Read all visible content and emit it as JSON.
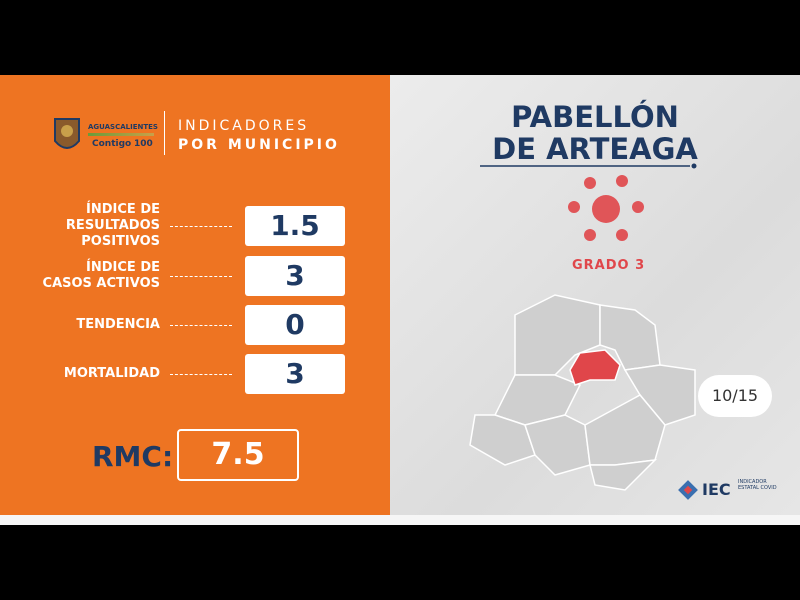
{
  "logo": {
    "state": "AGUASCALIENTES",
    "slogan": "Contigo",
    "number": "100"
  },
  "header": {
    "line1": "INDICADORES",
    "line2": "POR MUNICIPIO"
  },
  "indicators": [
    {
      "label_lines": [
        "ÍNDICE DE",
        "RESULTADOS",
        "POSITIVOS"
      ],
      "value": 1.5
    },
    {
      "label_lines": [
        "ÍNDICE DE",
        "CASOS ACTIVOS"
      ],
      "value": 3
    },
    {
      "label_lines": [
        "TENDENCIA"
      ],
      "value": 0
    },
    {
      "label_lines": [
        "MORTALIDAD"
      ],
      "value": 3
    }
  ],
  "rmc": {
    "label": "RMC:",
    "value": 7.5
  },
  "municipality": {
    "line1": "PABELLÓN",
    "line2": "DE ARTEAGA"
  },
  "grade": "GRADO 3",
  "page_counter": "10/15",
  "footer_logo": {
    "name": "IEC",
    "subtitle": "INDICADOR ESTATAL COVID"
  }
}
